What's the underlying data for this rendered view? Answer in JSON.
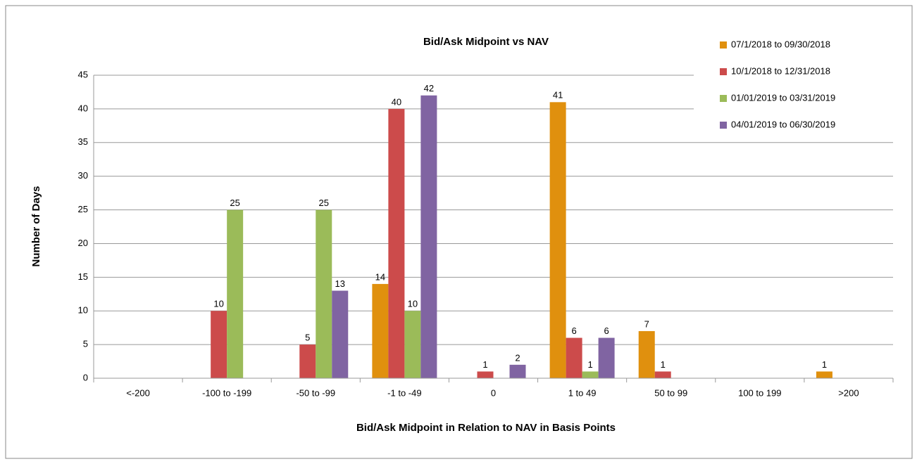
{
  "chart_data": {
    "type": "bar",
    "title": "Bid/Ask Midpoint vs NAV",
    "x_label": "Bid/Ask Midpoint in Relation to NAV in Basis Points",
    "y_label": "Number of Days",
    "categories": [
      "<-200",
      "-100 to -199",
      "-50 to -99",
      "-1 to -49",
      "0",
      "1 to 49",
      "50 to 99",
      "100 to 199",
      ">200"
    ],
    "series": [
      {
        "name": "07/1/2018 to 09/30/2018",
        "color": "#e0900e",
        "values": [
          0,
          0,
          0,
          14,
          0,
          41,
          7,
          0,
          1
        ]
      },
      {
        "name": "10/1/2018 to 12/31/2018",
        "color": "#cc4b4b",
        "values": [
          0,
          10,
          5,
          40,
          1,
          6,
          1,
          0,
          0
        ]
      },
      {
        "name": "01/01/2019 to 03/31/2019",
        "color": "#9bbb59",
        "values": [
          0,
          25,
          25,
          10,
          0,
          1,
          0,
          0,
          0
        ]
      },
      {
        "name": "04/01/2019 to 06/30/2019",
        "color": "#8064a2",
        "values": [
          0,
          0,
          13,
          42,
          2,
          6,
          0,
          0,
          0
        ]
      }
    ],
    "ylim": [
      0,
      45
    ],
    "yticks": [
      0,
      5,
      10,
      15,
      20,
      25,
      30,
      35,
      40,
      45
    ],
    "grid": true,
    "legend": "upper right"
  }
}
